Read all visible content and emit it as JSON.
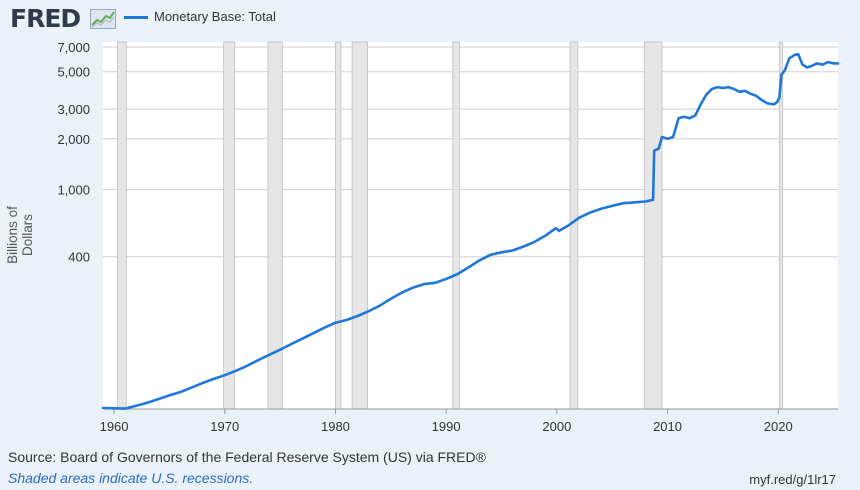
{
  "header": {
    "logo_text": "FRED",
    "logo_icon": "trend-line-icon",
    "legend_label": "Monetary Base: Total",
    "series_color": "#1f77d8"
  },
  "footer": {
    "source": "Source: Board of Governors of the Federal Reserve System (US) via FRED®",
    "recession_note": "Shaded areas indicate U.S. recessions.",
    "short_url": "myf.red/g/1lr17"
  },
  "chart_data": {
    "type": "line",
    "title": "Monetary Base: Total",
    "xlabel": "",
    "ylabel": "Billions of Dollars",
    "y_scale": "log",
    "xlim": [
      1959.0,
      2025.4
    ],
    "ylim": [
      50,
      7500
    ],
    "grid": true,
    "legend_position": "top-left",
    "y_ticks": [
      400,
      1000,
      2000,
      3000,
      5000,
      7000
    ],
    "y_tick_labels": [
      "400",
      "1,000",
      "2,000",
      "3,000",
      "5,000",
      "7,000"
    ],
    "x_ticks": [
      1960,
      1970,
      1980,
      1990,
      2000,
      2010,
      2020
    ],
    "x_tick_labels": [
      "1960",
      "1970",
      "1980",
      "1990",
      "2000",
      "2010",
      "2020"
    ],
    "recessions": [
      [
        1960.3,
        1961.1
      ],
      [
        1969.9,
        1970.9
      ],
      [
        1973.9,
        1975.2
      ],
      [
        1980.0,
        1980.5
      ],
      [
        1981.5,
        1982.9
      ],
      [
        1990.6,
        1991.2
      ],
      [
        2001.2,
        2001.9
      ],
      [
        2007.9,
        2009.5
      ],
      [
        2020.1,
        2020.4
      ]
    ],
    "series": [
      {
        "name": "Monetary Base: Total",
        "x": [
          1959.0,
          1960.0,
          1961.0,
          1962.0,
          1963.0,
          1964.0,
          1965.0,
          1966.0,
          1967.0,
          1968.0,
          1969.0,
          1970.0,
          1971.0,
          1972.0,
          1973.0,
          1974.0,
          1975.0,
          1976.0,
          1977.0,
          1978.0,
          1979.0,
          1980.0,
          1981.0,
          1982.0,
          1983.0,
          1984.0,
          1985.0,
          1986.0,
          1987.0,
          1988.0,
          1989.0,
          1990.0,
          1991.0,
          1992.0,
          1993.0,
          1994.0,
          1995.0,
          1996.0,
          1997.0,
          1998.0,
          1999.0,
          1999.9,
          2000.2,
          2001.0,
          2002.0,
          2003.0,
          2004.0,
          2005.0,
          2006.0,
          2007.0,
          2008.0,
          2008.7,
          2008.8,
          2009.2,
          2009.5,
          2010.0,
          2010.5,
          2011.0,
          2011.5,
          2012.0,
          2012.5,
          2013.0,
          2013.5,
          2014.0,
          2014.5,
          2015.0,
          2015.5,
          2016.0,
          2016.5,
          2017.0,
          2017.5,
          2018.0,
          2018.5,
          2019.0,
          2019.6,
          2019.9,
          2020.1,
          2020.3,
          2020.6,
          2021.0,
          2021.5,
          2021.8,
          2022.2,
          2022.6,
          2023.0,
          2023.5,
          2024.0,
          2024.5,
          2025.0,
          2025.4
        ],
        "values": [
          50.7,
          50.5,
          50.3,
          52.2,
          54.5,
          57.2,
          60.2,
          63.1,
          67.0,
          71.3,
          75.4,
          79.3,
          84.2,
          90.0,
          97.3,
          104.6,
          112.4,
          121.3,
          130.5,
          140.7,
          151.7,
          162.4,
          168.5,
          178.0,
          190.0,
          205.0,
          225.0,
          245.0,
          262.0,
          275.0,
          280.0,
          295.0,
          315.0,
          345.0,
          380.0,
          410.0,
          425.0,
          435.0,
          460.0,
          490.0,
          535.0,
          590.0,
          570.0,
          610.0,
          680.0,
          730.0,
          770.0,
          800.0,
          830.0,
          840.0,
          850.0,
          870.0,
          1700.0,
          1750.0,
          2050.0,
          2000.0,
          2050.0,
          2650.0,
          2700.0,
          2650.0,
          2750.0,
          3200.0,
          3650.0,
          3950.0,
          4050.0,
          4000.0,
          4050.0,
          3950.0,
          3800.0,
          3850.0,
          3700.0,
          3600.0,
          3400.0,
          3250.0,
          3200.0,
          3300.0,
          3500.0,
          4800.0,
          5100.0,
          6000.0,
          6300.0,
          6350.0,
          5500.0,
          5300.0,
          5400.0,
          5600.0,
          5500.0,
          5700.0,
          5600.0,
          5600.0
        ]
      }
    ]
  }
}
